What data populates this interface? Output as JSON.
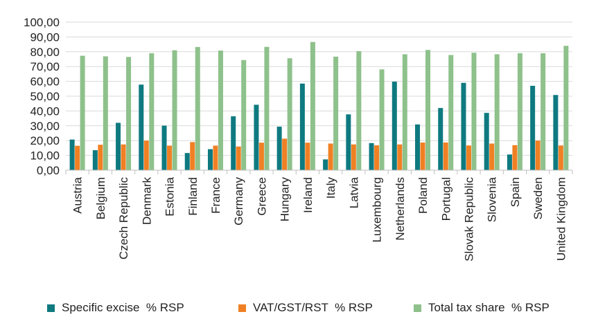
{
  "chart_data": {
    "type": "bar",
    "categories": [
      "Austria",
      "Belgium",
      "Czech Republic",
      "Denmark",
      "Estonia",
      "Finland",
      "France",
      "Germany",
      "Greece",
      "Hungary",
      "Ireland",
      "Italy",
      "Latvia",
      "Luxembourg",
      "Netherlands",
      "Poland",
      "Portugal",
      "Slovak Republic",
      "Slovenia",
      "Spain",
      "Sweden",
      "United Kingdom"
    ],
    "series": [
      {
        "name": "Specific excise  % RSP",
        "color": "#0e7a80",
        "values": [
          20.7,
          13.5,
          32.0,
          57.8,
          30.1,
          11.6,
          14.2,
          36.4,
          44.2,
          29.4,
          58.5,
          7.3,
          37.7,
          18.3,
          59.8,
          30.9,
          42.0,
          59.0,
          38.7,
          10.6,
          57.0,
          50.8
        ]
      },
      {
        "name": "VAT/GST/RST  % RSP",
        "color": "#f08024",
        "values": [
          16.5,
          17.2,
          17.4,
          20.0,
          16.6,
          19.0,
          16.6,
          16.0,
          18.6,
          21.3,
          18.6,
          18.0,
          17.4,
          16.8,
          17.4,
          18.7,
          18.7,
          16.7,
          18.0,
          16.9,
          20.0,
          16.7
        ]
      },
      {
        "name": "Total tax share  % RSP",
        "color": "#8ec18b",
        "values": [
          77.3,
          76.9,
          76.5,
          79.0,
          81.0,
          83.2,
          80.8,
          74.4,
          83.3,
          75.6,
          86.6,
          76.7,
          80.4,
          68.1,
          78.3,
          81.2,
          77.8,
          79.3,
          78.3,
          79.0,
          79.0,
          84.0
        ]
      }
    ],
    "y_ticks": [
      "0,00",
      "10,00",
      "20,00",
      "30,00",
      "40,00",
      "50,00",
      "60,00",
      "70,00",
      "80,00",
      "90,00",
      "100,00"
    ],
    "ylim": [
      0,
      100
    ],
    "grid": true,
    "legend_position": "bottom"
  }
}
